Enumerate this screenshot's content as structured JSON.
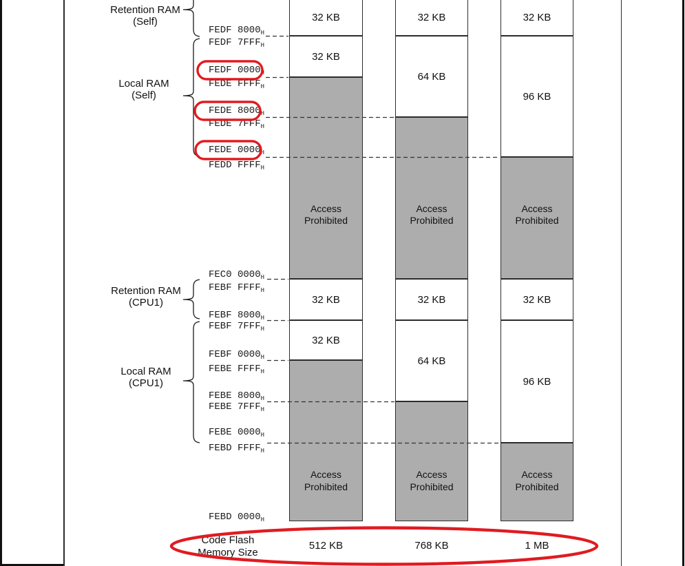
{
  "figure": {
    "groups": [
      {
        "line1": "Retention RAM",
        "line2": "(Self)"
      },
      {
        "line1": "Local RAM",
        "line2": "(Self)"
      },
      {
        "line1": "Retention RAM",
        "line2": "(CPU1)"
      },
      {
        "line1": "Local RAM",
        "line2": "(CPU1)"
      }
    ],
    "addresses": [
      {
        "value": "FEDF 8000",
        "suffix": "H",
        "circled": false
      },
      {
        "value": "FEDF 7FFF",
        "suffix": "H",
        "circled": false
      },
      {
        "value": "FEDF 0000",
        "suffix": "H",
        "circled": true
      },
      {
        "value": "FEDE FFFF",
        "suffix": "H",
        "circled": false
      },
      {
        "value": "FEDE 8000",
        "suffix": "H",
        "circled": true
      },
      {
        "value": "FEDE 7FFF",
        "suffix": "H",
        "circled": false
      },
      {
        "value": "FEDE 0000",
        "suffix": "H",
        "circled": true
      },
      {
        "value": "FEDD FFFF",
        "suffix": "H",
        "circled": false
      },
      {
        "value": "FEC0 0000",
        "suffix": "H",
        "circled": false
      },
      {
        "value": "FEBF FFFF",
        "suffix": "H",
        "circled": false
      },
      {
        "value": "FEBF 8000",
        "suffix": "H",
        "circled": false
      },
      {
        "value": "FEBF 7FFF",
        "suffix": "H",
        "circled": false
      },
      {
        "value": "FEBF 0000",
        "suffix": "H",
        "circled": false
      },
      {
        "value": "FEBE FFFF",
        "suffix": "H",
        "circled": false
      },
      {
        "value": "FEBE 8000",
        "suffix": "H",
        "circled": false
      },
      {
        "value": "FEBE 7FFF",
        "suffix": "H",
        "circled": false
      },
      {
        "value": "FEBE 0000",
        "suffix": "H",
        "circled": false
      },
      {
        "value": "FEBD FFFF",
        "suffix": "H",
        "circled": false
      },
      {
        "value": "FEBD 0000",
        "suffix": "H",
        "circled": false
      }
    ],
    "access_prohibited": {
      "line1": "Access",
      "line2": "Prohibited"
    },
    "columns": [
      {
        "blocks": [
          {
            "type": "ram",
            "label": "32 KB"
          },
          {
            "type": "ram",
            "label": "32 KB"
          },
          {
            "type": "prohibited",
            "label": ""
          },
          {
            "type": "ram",
            "label": "32 KB"
          },
          {
            "type": "ram",
            "label": "32 KB"
          },
          {
            "type": "prohibited",
            "label": ""
          }
        ]
      },
      {
        "blocks": [
          {
            "type": "ram",
            "label": "32 KB"
          },
          {
            "type": "ram",
            "label": "64 KB"
          },
          {
            "type": "prohibited",
            "label": ""
          },
          {
            "type": "ram",
            "label": "32 KB"
          },
          {
            "type": "ram",
            "label": "64 KB"
          },
          {
            "type": "prohibited",
            "label": ""
          }
        ]
      },
      {
        "blocks": [
          {
            "type": "ram",
            "label": "32 KB"
          },
          {
            "type": "ram",
            "label": "96 KB"
          },
          {
            "type": "prohibited",
            "label": ""
          },
          {
            "type": "ram",
            "label": "32 KB"
          },
          {
            "type": "ram",
            "label": "96 KB"
          },
          {
            "type": "prohibited",
            "label": ""
          }
        ]
      }
    ],
    "footer": {
      "label_line1": "Code Flash",
      "label_line2": "Memory Size",
      "values": [
        "512 KB",
        "768 KB",
        "1 MB"
      ]
    },
    "colors": {
      "prohibited_fill": "#adadad",
      "highlight_red": "#e01b20",
      "line": "#1a1a1a"
    }
  }
}
